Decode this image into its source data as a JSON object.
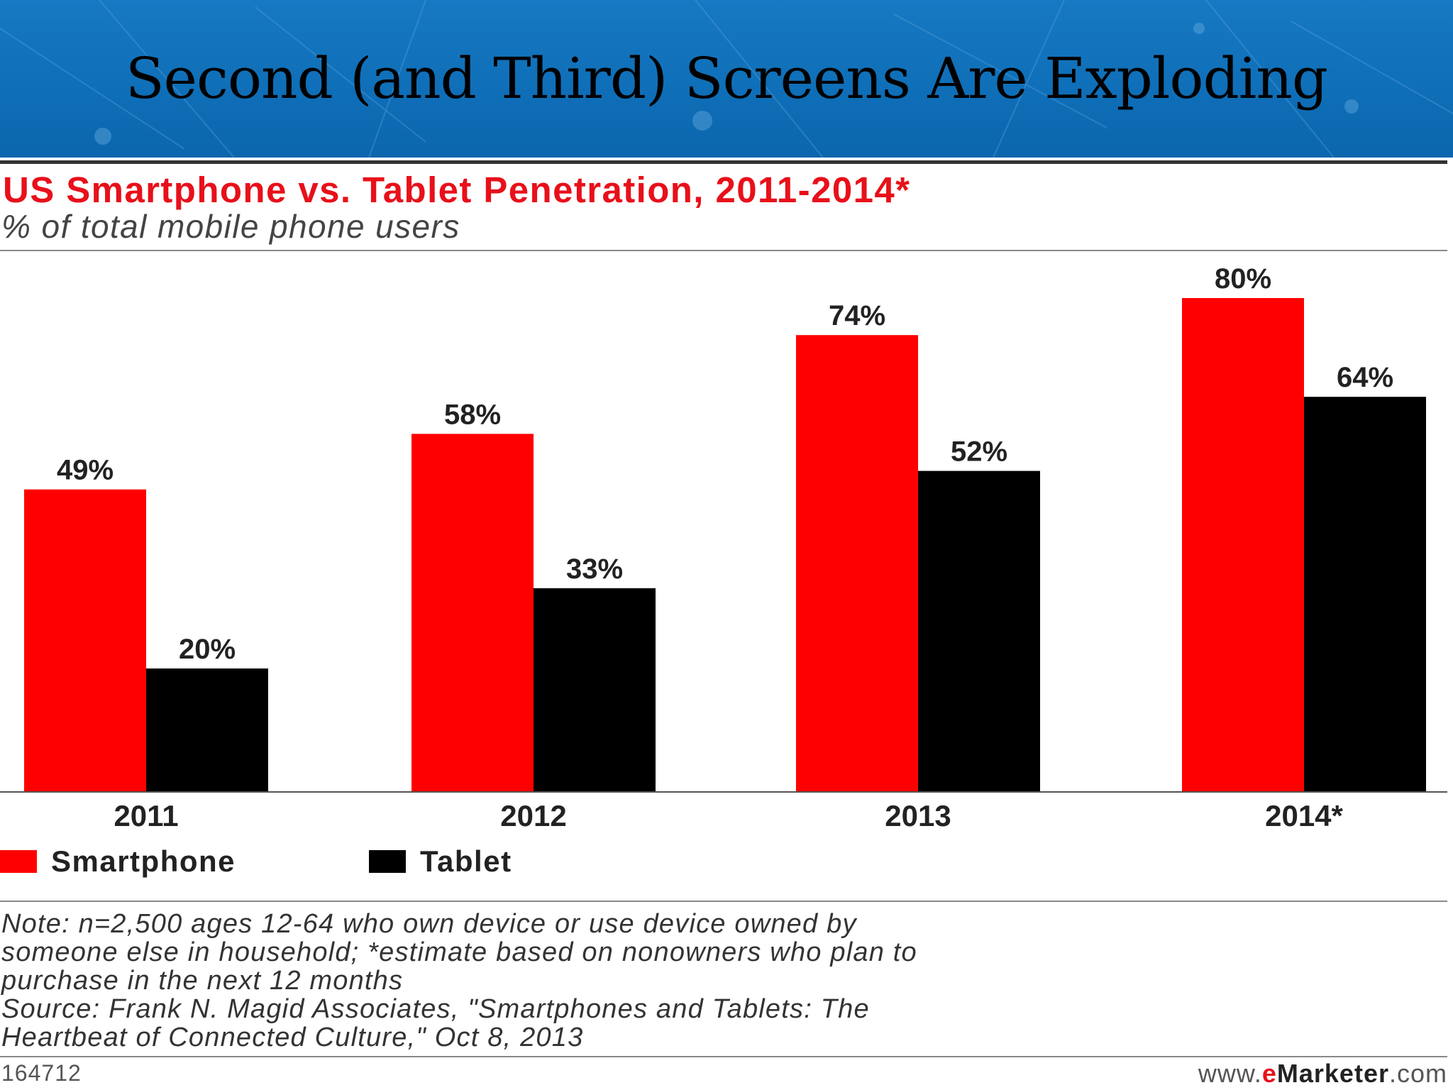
{
  "slide": {
    "title": "Second (and Third) Screens Are Exploding"
  },
  "colors": {
    "header_blue": "#1374bd",
    "smartphone": "#ff0000",
    "tablet": "#000000",
    "title_red": "#e8101a"
  },
  "chart_data": {
    "type": "bar",
    "title": "US Smartphone vs. Tablet Penetration, 2011-2014*",
    "subtitle": "% of total mobile phone users",
    "categories": [
      "2011",
      "2012",
      "2013",
      "2014*"
    ],
    "series": [
      {
        "name": "Smartphone",
        "values": [
          49,
          58,
          74,
          80
        ],
        "labels": [
          "49%",
          "58%",
          "74%",
          "80%"
        ],
        "color": "#ff0000"
      },
      {
        "name": "Tablet",
        "values": [
          20,
          33,
          52,
          64
        ],
        "labels": [
          "20%",
          "33%",
          "52%",
          "64%"
        ],
        "color": "#000000"
      }
    ],
    "ylim": [
      0,
      100
    ],
    "grid": false,
    "legend_position": "bottom-left",
    "note_lines": [
      "Note: n=2,500 ages 12-64 who own device or use device owned by",
      "someone else in household; *estimate based on nonowners who plan to",
      "purchase in the next 12 months",
      "Source: Frank N. Magid Associates, \"Smartphones and Tablets: The",
      "Heartbeat of Connected Culture,\" Oct 8, 2013"
    ],
    "chart_id": "164712",
    "brand": {
      "prefix": "www.",
      "accent": "e",
      "name": "Marketer",
      "suffix": ".com"
    }
  }
}
